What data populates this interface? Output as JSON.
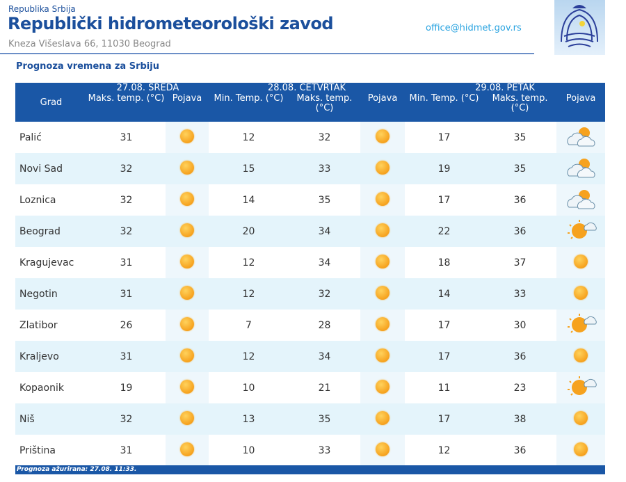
{
  "header": {
    "country": "Republika Srbija",
    "institution": "Republički hidrometeorološki zavod",
    "address": "Kneza Višeslava 66, 11030 Beograd",
    "email": "office@hidmet.gov.rs"
  },
  "subtitle": "Prognoza vremena za Srbiju",
  "table": {
    "days": [
      "27.08. SREDA",
      "28.08. ČETVRTAK",
      "29.08. PETAK"
    ],
    "columns": {
      "city": "Grad",
      "max": "Maks. temp. (°C)",
      "min": "Min. Temp. (°C)",
      "phen": "Pojava"
    },
    "rows": [
      {
        "city": "Palić",
        "d1max": "31",
        "d1icon": "sunny",
        "d2min": "12",
        "d2max": "32",
        "d2icon": "sunny",
        "d3min": "17",
        "d3max": "35",
        "d3icon": "partly-cloudy"
      },
      {
        "city": "Novi Sad",
        "d1max": "32",
        "d1icon": "sunny",
        "d2min": "15",
        "d2max": "33",
        "d2icon": "sunny",
        "d3min": "19",
        "d3max": "35",
        "d3icon": "partly-cloudy"
      },
      {
        "city": "Loznica",
        "d1max": "32",
        "d1icon": "sunny",
        "d2min": "14",
        "d2max": "35",
        "d2icon": "sunny",
        "d3min": "17",
        "d3max": "36",
        "d3icon": "partly-cloudy"
      },
      {
        "city": "Beograd",
        "d1max": "32",
        "d1icon": "sunny",
        "d2min": "20",
        "d2max": "34",
        "d2icon": "sunny",
        "d3min": "22",
        "d3max": "36",
        "d3icon": "mostly-sunny"
      },
      {
        "city": "Kragujevac",
        "d1max": "31",
        "d1icon": "sunny",
        "d2min": "12",
        "d2max": "34",
        "d2icon": "sunny",
        "d3min": "18",
        "d3max": "37",
        "d3icon": "sunny"
      },
      {
        "city": "Negotin",
        "d1max": "31",
        "d1icon": "sunny",
        "d2min": "12",
        "d2max": "32",
        "d2icon": "sunny",
        "d3min": "14",
        "d3max": "33",
        "d3icon": "sunny"
      },
      {
        "city": "Zlatibor",
        "d1max": "26",
        "d1icon": "sunny",
        "d2min": "7",
        "d2max": "28",
        "d2icon": "sunny",
        "d3min": "17",
        "d3max": "30",
        "d3icon": "mostly-sunny"
      },
      {
        "city": "Kraljevo",
        "d1max": "31",
        "d1icon": "sunny",
        "d2min": "12",
        "d2max": "34",
        "d2icon": "sunny",
        "d3min": "17",
        "d3max": "36",
        "d3icon": "sunny"
      },
      {
        "city": "Kopaonik",
        "d1max": "19",
        "d1icon": "sunny",
        "d2min": "10",
        "d2max": "21",
        "d2icon": "sunny",
        "d3min": "11",
        "d3max": "23",
        "d3icon": "mostly-sunny"
      },
      {
        "city": "Niš",
        "d1max": "32",
        "d1icon": "sunny",
        "d2min": "13",
        "d2max": "35",
        "d2icon": "sunny",
        "d3min": "17",
        "d3max": "38",
        "d3icon": "sunny"
      },
      {
        "city": "Priština",
        "d1max": "31",
        "d1icon": "sunny",
        "d2min": "10",
        "d2max": "33",
        "d2icon": "sunny",
        "d3min": "12",
        "d3max": "36",
        "d3icon": "sunny"
      }
    ]
  },
  "footer": "Prognoza ažurirana:  27.08. 11:33.",
  "colors": {
    "header_bg": "#1a57a6",
    "row_alt": "#e4f4fb",
    "title": "#1b4f9c",
    "email": "#29a3e0"
  }
}
